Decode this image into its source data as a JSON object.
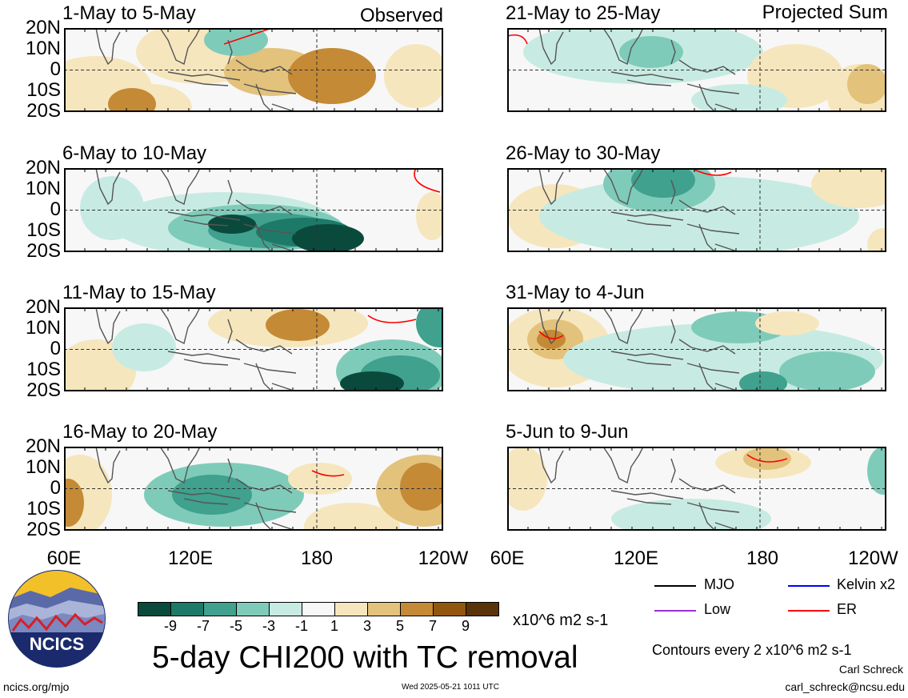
{
  "left_tag": "Observed",
  "right_tag": "Projected Sum",
  "lat_labels": [
    "20N",
    "10N",
    "0",
    "10S",
    "20S"
  ],
  "lon_labels": [
    "60E",
    "120E",
    "180",
    "120W"
  ],
  "panels": [
    {
      "title": "1-May to 5-May",
      "column": "left",
      "row": 0
    },
    {
      "title": "6-May to 10-May",
      "column": "left",
      "row": 1
    },
    {
      "title": "11-May to 15-May",
      "column": "left",
      "row": 2
    },
    {
      "title": "16-May to 20-May",
      "column": "left",
      "row": 3
    },
    {
      "title": "21-May to 25-May",
      "column": "right",
      "row": 0
    },
    {
      "title": "26-May to 30-May",
      "column": "right",
      "row": 1
    },
    {
      "title": "31-May to 4-Jun",
      "column": "right",
      "row": 2
    },
    {
      "title": "5-Jun to 9-Jun",
      "column": "right",
      "row": 3
    }
  ],
  "chart_data": {
    "type": "heatmap",
    "title": "5-day CHI200 with TC removal",
    "variable": "CHI200 anomaly",
    "units": "x10^6 m2 s-1",
    "x_range": [
      "60E",
      "120W"
    ],
    "y_range": [
      "20S",
      "20N"
    ],
    "colorbar": {
      "ticks": [
        "-9",
        "-7",
        "-5",
        "-3",
        "-1",
        "1",
        "3",
        "5",
        "7",
        "9"
      ],
      "colors": [
        "#0a4a3c",
        "#1e7a68",
        "#3fa18e",
        "#7fcbb9",
        "#c7ebe2",
        "#f7f7f7",
        "#f6e6bd",
        "#e3c27c",
        "#c58a35",
        "#93560f",
        "#5a330a"
      ]
    },
    "legend": [
      {
        "label": "MJO",
        "color": "#000000"
      },
      {
        "label": "Kelvin x2",
        "color": "#0000ff"
      },
      {
        "label": "Low",
        "color": "#9b30d9"
      },
      {
        "label": "ER",
        "color": "#ff0000"
      }
    ],
    "contour_note": "Contours every 2 x10^6 m2 s-1"
  },
  "footer": {
    "logo_text": "NCICS",
    "site": "ncics.org/mjo",
    "timestamp": "Wed 2025-05-21 1011 UTC",
    "author": "Carl Schreck",
    "email": "carl_schreck@ncsu.edu"
  }
}
